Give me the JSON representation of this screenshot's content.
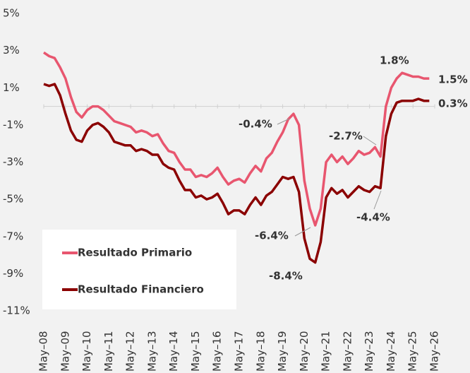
{
  "chart_data": {
    "type": "line",
    "x": [
      2008.33,
      2008.58,
      2008.83,
      2009.08,
      2009.33,
      2009.58,
      2009.83,
      2010.08,
      2010.33,
      2010.58,
      2010.83,
      2011.08,
      2011.33,
      2011.58,
      2011.83,
      2012.08,
      2012.33,
      2012.58,
      2012.83,
      2013.08,
      2013.33,
      2013.58,
      2013.83,
      2014.08,
      2014.33,
      2014.58,
      2014.83,
      2015.08,
      2015.33,
      2015.58,
      2015.83,
      2016.08,
      2016.33,
      2016.58,
      2016.83,
      2017.08,
      2017.33,
      2017.58,
      2017.83,
      2018.08,
      2018.33,
      2018.58,
      2018.83,
      2019.08,
      2019.33,
      2019.58,
      2019.83,
      2020.08,
      2020.33,
      2020.58,
      2020.83,
      2021.08,
      2021.33,
      2021.58,
      2021.83,
      2022.08,
      2022.33,
      2022.58,
      2022.83,
      2023.08,
      2023.33,
      2023.58,
      2023.83,
      2024.08,
      2024.33,
      2024.58,
      2024.83,
      2025.08,
      2025.33,
      2025.58,
      2025.83,
      2026.08
    ],
    "series": [
      {
        "name": "Resultado Primario",
        "color": "#e8566f",
        "values": [
          2.9,
          2.7,
          2.6,
          2.1,
          1.5,
          0.5,
          -0.3,
          -0.6,
          -0.2,
          0.0,
          0.0,
          -0.2,
          -0.5,
          -0.8,
          -0.9,
          -1.0,
          -1.1,
          -1.4,
          -1.3,
          -1.4,
          -1.6,
          -1.5,
          -2.0,
          -2.4,
          -2.5,
          -3.0,
          -3.4,
          -3.4,
          -3.8,
          -3.7,
          -3.8,
          -3.6,
          -3.3,
          -3.8,
          -4.2,
          -4.0,
          -3.9,
          -4.1,
          -3.6,
          -3.2,
          -3.5,
          -2.8,
          -2.5,
          -1.9,
          -1.4,
          -0.7,
          -0.4,
          -1.0,
          -4.0,
          -5.5,
          -6.4,
          -5.5,
          -3.0,
          -2.6,
          -3.0,
          -2.7,
          -3.1,
          -2.8,
          -2.4,
          -2.6,
          -2.5,
          -2.2,
          -2.7,
          0.0,
          1.0,
          1.5,
          1.8,
          1.7,
          1.6,
          1.6,
          1.5,
          1.5
        ]
      },
      {
        "name": "Resultado Financiero",
        "color": "#8b0000",
        "values": [
          1.2,
          1.1,
          1.2,
          0.6,
          -0.4,
          -1.3,
          -1.8,
          -1.9,
          -1.3,
          -1.0,
          -0.9,
          -1.1,
          -1.4,
          -1.9,
          -2.0,
          -2.1,
          -2.1,
          -2.4,
          -2.3,
          -2.4,
          -2.6,
          -2.6,
          -3.1,
          -3.3,
          -3.4,
          -4.0,
          -4.5,
          -4.5,
          -4.9,
          -4.8,
          -5.0,
          -4.9,
          -4.7,
          -5.2,
          -5.8,
          -5.6,
          -5.6,
          -5.8,
          -5.3,
          -4.9,
          -5.3,
          -4.8,
          -4.6,
          -4.2,
          -3.8,
          -3.9,
          -3.8,
          -4.6,
          -7.1,
          -8.2,
          -8.4,
          -7.3,
          -4.9,
          -4.4,
          -4.7,
          -4.5,
          -4.9,
          -4.6,
          -4.3,
          -4.5,
          -4.6,
          -4.3,
          -4.4,
          -1.6,
          -0.4,
          0.2,
          0.3,
          0.3,
          0.3,
          0.4,
          0.3,
          0.3
        ]
      }
    ],
    "annotations": [
      "1.8%",
      "1.5%",
      "0.3%",
      "-0.4%",
      "-2.7%",
      "-6.4%",
      "-8.4%",
      "-4.4%"
    ],
    "xlim": [
      2008.33,
      2026.33
    ],
    "xticks": [
      {
        "value": 2008.33,
        "label": "May–08"
      },
      {
        "value": 2009.33,
        "label": "May–09"
      },
      {
        "value": 2010.33,
        "label": "May–10"
      },
      {
        "value": 2011.33,
        "label": "May–11"
      },
      {
        "value": 2012.33,
        "label": "May–12"
      },
      {
        "value": 2013.33,
        "label": "May–13"
      },
      {
        "value": 2014.33,
        "label": "May–14"
      },
      {
        "value": 2015.33,
        "label": "May–15"
      },
      {
        "value": 2016.33,
        "label": "May–16"
      },
      {
        "value": 2017.33,
        "label": "May–17"
      },
      {
        "value": 2018.33,
        "label": "May–18"
      },
      {
        "value": 2019.33,
        "label": "May–19"
      },
      {
        "value": 2020.33,
        "label": "May–20"
      },
      {
        "value": 2021.33,
        "label": "May–21"
      },
      {
        "value": 2022.33,
        "label": "May–22"
      },
      {
        "value": 2023.33,
        "label": "May–23"
      },
      {
        "value": 2024.33,
        "label": "May–24"
      },
      {
        "value": 2025.33,
        "label": "May–25"
      },
      {
        "value": 2026.33,
        "label": "May–26"
      }
    ],
    "ylim": [
      -11,
      5
    ],
    "yticks": [
      {
        "value": 5,
        "label": "5%"
      },
      {
        "value": 3,
        "label": "3%"
      },
      {
        "value": 1,
        "label": "1%"
      },
      {
        "value": -1,
        "label": "-1%"
      },
      {
        "value": -3,
        "label": "-3%"
      },
      {
        "value": -5,
        "label": "-5%"
      },
      {
        "value": -7,
        "label": "-7%"
      },
      {
        "value": -9,
        "label": "-9%"
      },
      {
        "value": -11,
        "label": "-11%"
      }
    ],
    "grid": false,
    "legend": "lower left"
  }
}
